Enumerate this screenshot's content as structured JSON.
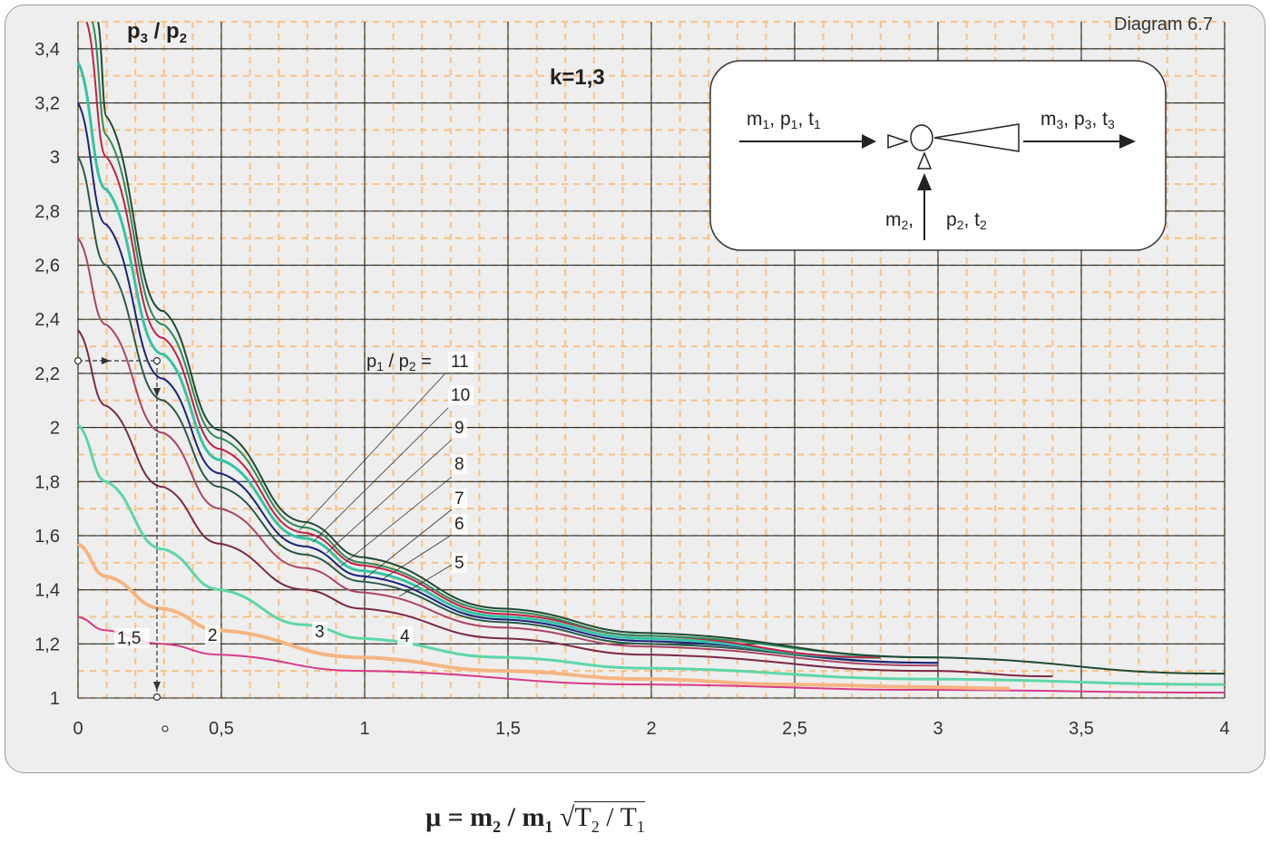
{
  "chart_data": {
    "type": "line",
    "title": "Diagram 6.7",
    "annotation_k": "k=1,3",
    "ylabel": "p3 / p2",
    "xlabel": "μ = m2 / m1 √T2 / T1",
    "xlim": [
      0,
      4
    ],
    "ylim": [
      1,
      3.5
    ],
    "x_ticks": [
      "0",
      "0,5",
      "1",
      "1,5",
      "2",
      "2,5",
      "3",
      "3,5",
      "4"
    ],
    "y_ticks": [
      "1",
      "1,2",
      "1,4",
      "1,6",
      "1,8",
      "2",
      "2,2",
      "2,4",
      "2,6",
      "2,8",
      "3",
      "3,2",
      "3,4"
    ],
    "legend_title": "p1 / p2 =",
    "grid": true,
    "series": [
      {
        "name": "1,5",
        "color": "#d63a8a",
        "x": [
          0,
          0.1,
          0.3,
          0.5,
          1,
          2,
          3,
          4
        ],
        "y": [
          1.3,
          1.25,
          1.2,
          1.16,
          1.1,
          1.05,
          1.03,
          1.02
        ]
      },
      {
        "name": "2",
        "color": "#f5b582",
        "x": [
          0,
          0.1,
          0.3,
          0.5,
          1,
          1.5,
          2,
          2.5,
          3,
          3.25
        ],
        "y": [
          1.57,
          1.45,
          1.33,
          1.25,
          1.15,
          1.1,
          1.07,
          1.05,
          1.04,
          1.035
        ]
      },
      {
        "name": "3",
        "color": "#5fd6a8",
        "x": [
          0,
          0.1,
          0.3,
          0.5,
          0.8,
          1,
          1.5,
          2,
          3,
          4
        ],
        "y": [
          2.01,
          1.8,
          1.55,
          1.4,
          1.27,
          1.22,
          1.15,
          1.11,
          1.07,
          1.05
        ]
      },
      {
        "name": "4",
        "color": "#7a2848",
        "x": [
          0,
          0.1,
          0.3,
          0.5,
          0.8,
          1,
          1.5,
          2,
          3,
          3.4
        ],
        "y": [
          2.36,
          2.08,
          1.78,
          1.57,
          1.4,
          1.33,
          1.22,
          1.16,
          1.1,
          1.08
        ]
      },
      {
        "name": "5",
        "color": "#aa4466",
        "x": [
          0,
          0.1,
          0.3,
          0.5,
          0.8,
          1,
          1.5,
          2,
          3
        ],
        "y": [
          2.7,
          2.38,
          1.98,
          1.7,
          1.48,
          1.39,
          1.26,
          1.19,
          1.12
        ]
      },
      {
        "name": "6",
        "color": "#2a5a4a",
        "x": [
          0,
          0.1,
          0.3,
          0.5,
          0.8,
          1,
          1.5,
          2,
          3
        ],
        "y": [
          3.0,
          2.6,
          2.1,
          1.78,
          1.53,
          1.43,
          1.28,
          1.2,
          1.13
        ]
      },
      {
        "name": "7",
        "color": "#1a237e",
        "x": [
          0,
          0.1,
          0.3,
          0.5,
          0.8,
          1,
          1.5,
          2,
          3
        ],
        "y": [
          3.2,
          2.75,
          2.18,
          1.83,
          1.56,
          1.45,
          1.29,
          1.21,
          1.13
        ]
      },
      {
        "name": "8",
        "color": "#33c4a4",
        "x": [
          0,
          0.1,
          0.3,
          0.5,
          0.8,
          1,
          1.5,
          2,
          2.8
        ],
        "y": [
          3.35,
          2.88,
          2.27,
          1.88,
          1.59,
          1.47,
          1.3,
          1.22,
          1.15
        ]
      },
      {
        "name": "9",
        "color": "#c4204a",
        "x": [
          0.03,
          0.1,
          0.3,
          0.5,
          0.8,
          1,
          1.5,
          2,
          2.8
        ],
        "y": [
          3.5,
          3.0,
          2.33,
          1.92,
          1.61,
          1.49,
          1.31,
          1.23,
          1.15
        ]
      },
      {
        "name": "10",
        "color": "#2f8a55",
        "x": [
          0.05,
          0.1,
          0.3,
          0.5,
          0.8,
          1,
          1.5,
          2,
          3
        ],
        "y": [
          3.5,
          3.08,
          2.38,
          1.96,
          1.63,
          1.5,
          1.32,
          1.23,
          1.15
        ]
      },
      {
        "name": "11",
        "color": "#1f4a35",
        "x": [
          0.07,
          0.1,
          0.3,
          0.5,
          0.8,
          1,
          1.5,
          2,
          3,
          4
        ],
        "y": [
          3.5,
          3.15,
          2.43,
          1.99,
          1.65,
          1.52,
          1.33,
          1.24,
          1.15,
          1.09
        ]
      }
    ],
    "example_reading": {
      "x": 0.28,
      "y": 2.25
    }
  },
  "inset": {
    "stream1": {
      "main": "m",
      "sub1": "1",
      "p": "p",
      "sub_p": "1",
      "t": "t",
      "sub_t": "1"
    },
    "stream2": {
      "main": "m",
      "sub1": "2",
      "p": "p",
      "sub_p": "2",
      "t": "t",
      "sub_t": "2"
    },
    "stream3": {
      "main": "m",
      "sub1": "3",
      "p": "p",
      "sub_p": "3",
      "t": "t",
      "sub_t": "3"
    }
  }
}
